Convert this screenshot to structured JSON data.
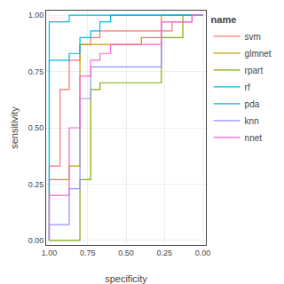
{
  "chart_data": {
    "type": "line",
    "xlabel": "specificity",
    "ylabel": "sensitivity",
    "legend_title": "name",
    "legend": "right",
    "grid": true,
    "xlim": [
      1.02,
      -0.02
    ],
    "ylim": [
      -0.02,
      1.02
    ],
    "xticks": [
      {
        "value": 1.0,
        "label": "1.00"
      },
      0.75,
      {
        "value": 0.5,
        "label": "0.50"
      },
      0.25,
      {
        "value": 0.0,
        "label": "0.00"
      }
    ],
    "yticks": [
      {
        "value": 0.0,
        "label": "0.00"
      },
      0.25,
      {
        "value": 0.5,
        "label": "0.50"
      },
      0.75,
      {
        "value": 1.0,
        "label": "1.00"
      }
    ],
    "series": [
      {
        "name": "svm",
        "color": "#F8766D",
        "x": [
          1.0,
          1.0,
          0.93,
          0.93,
          0.87,
          0.87,
          0.8,
          0.8,
          0.73,
          0.73,
          0.67,
          0.67,
          0.2,
          0.2,
          0.13,
          0.13,
          0.07,
          0.07,
          0.0,
          0.0
        ],
        "values": [
          0.0,
          0.33,
          0.33,
          0.67,
          0.67,
          0.8,
          0.8,
          0.87,
          0.87,
          0.9,
          0.9,
          0.93,
          0.93,
          0.97,
          0.97,
          0.97,
          0.97,
          1.0,
          1.0,
          1.0
        ]
      },
      {
        "name": "glmnet",
        "color": "#C4A000",
        "x": [
          1.0,
          1.0,
          0.87,
          0.87,
          0.8,
          0.8,
          0.73,
          0.73,
          0.47,
          0.47,
          0.4,
          0.4,
          0.27,
          0.27,
          0.0,
          0.0
        ],
        "values": [
          0.0,
          0.27,
          0.27,
          0.33,
          0.33,
          0.87,
          0.87,
          0.87,
          0.87,
          0.87,
          0.87,
          0.9,
          0.9,
          1.0,
          1.0,
          1.0
        ]
      },
      {
        "name": "rpart",
        "color": "#7CAE00",
        "x": [
          1.0,
          0.8,
          0.8,
          0.73,
          0.73,
          0.67,
          0.67,
          0.27,
          0.27,
          0.13,
          0.13,
          0.0
        ],
        "values": [
          0.0,
          0.0,
          0.27,
          0.27,
          0.67,
          0.67,
          0.7,
          0.7,
          0.9,
          0.9,
          1.0,
          1.0
        ]
      },
      {
        "name": "rf",
        "color": "#00BCD8",
        "x": [
          1.0,
          1.0,
          0.87,
          0.87,
          0.8,
          0.8,
          0.73,
          0.73,
          0.67,
          0.67,
          0.53,
          0.53,
          0.47,
          0.47,
          0.4,
          0.4,
          0.33,
          0.33,
          0.27,
          0.27,
          0.0
        ],
        "values": [
          0.0,
          0.97,
          0.97,
          1.0,
          1.0,
          1.0,
          1.0,
          1.0,
          1.0,
          1.0,
          1.0,
          1.0,
          1.0,
          1.0,
          1.0,
          1.0,
          1.0,
          1.0,
          1.0,
          1.0,
          1.0
        ]
      },
      {
        "name": "pda",
        "color": "#00B4F0",
        "x": [
          1.0,
          1.0,
          0.87,
          0.87,
          0.8,
          0.8,
          0.73,
          0.73,
          0.67,
          0.67,
          0.6,
          0.6,
          0.0
        ],
        "values": [
          0.0,
          0.8,
          0.8,
          0.83,
          0.83,
          0.9,
          0.9,
          0.93,
          0.93,
          0.97,
          0.97,
          1.0,
          1.0
        ]
      },
      {
        "name": "knn",
        "color": "#9590FF",
        "x": [
          1.0,
          1.0,
          0.87,
          0.87,
          0.8,
          0.8,
          0.73,
          0.73,
          0.27,
          0.27,
          0.07,
          0.07,
          0.0
        ],
        "values": [
          0.0,
          0.07,
          0.07,
          0.23,
          0.23,
          0.63,
          0.63,
          0.77,
          0.77,
          0.97,
          0.97,
          1.0,
          1.0
        ]
      },
      {
        "name": "nnet",
        "color": "#FF61CC",
        "x": [
          1.0,
          1.0,
          0.87,
          0.87,
          0.8,
          0.8,
          0.73,
          0.73,
          0.67,
          0.67,
          0.6,
          0.6,
          0.27,
          0.27,
          0.07,
          0.07,
          0.0
        ],
        "values": [
          0.0,
          0.2,
          0.2,
          0.5,
          0.5,
          0.73,
          0.73,
          0.8,
          0.8,
          0.83,
          0.83,
          0.87,
          0.87,
          0.97,
          0.97,
          1.0,
          1.0
        ]
      }
    ]
  }
}
